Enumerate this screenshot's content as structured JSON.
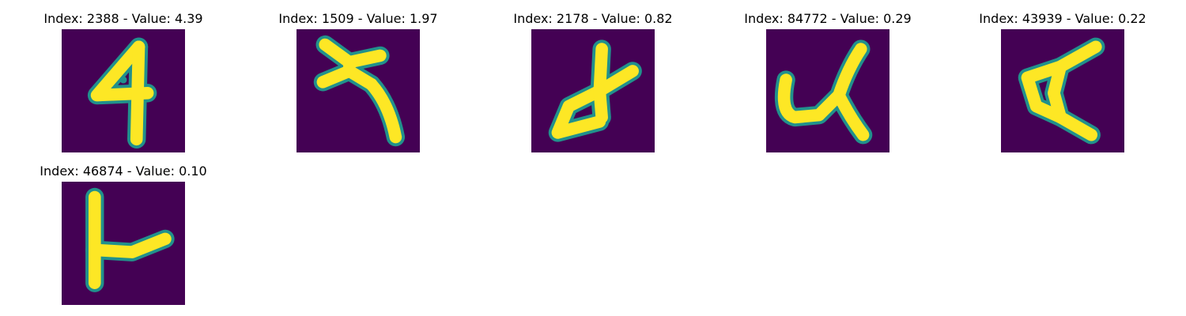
{
  "panels": [
    {
      "title": "Index: 2388 - Value: 4.39"
    },
    {
      "title": "Index: 1509 - Value: 1.97"
    },
    {
      "title": "Index: 2178 - Value: 0.82"
    },
    {
      "title": "Index: 84772 - Value: 0.29"
    },
    {
      "title": "Index: 43939 - Value: 0.22"
    },
    {
      "title": "Index: 46874 - Value: 0.10"
    }
  ],
  "colors": {
    "background": "#440154",
    "stroke": "#fde725",
    "edge": "#21918c"
  }
}
